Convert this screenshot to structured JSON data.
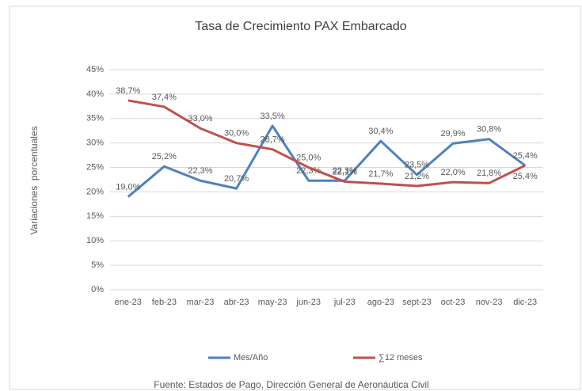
{
  "chart_data": {
    "type": "line",
    "title": "Tasa de Crecimiento PAX Embarcado",
    "y_label": "Variaciones  porcentuales",
    "source": "Fuente: Estados de Pago, Dirección General de Aeronáutica Civil",
    "categories": [
      "ene-23",
      "feb-23",
      "mar-23",
      "abr-23",
      "may-23",
      "jun-23",
      "jul-23",
      "ago-23",
      "sept-23",
      "oct-23",
      "nov-23",
      "dic-23"
    ],
    "series": [
      {
        "name": "Mes/Año",
        "color": "#4f81bd",
        "values": [
          19.0,
          25.2,
          22.3,
          20.7,
          33.5,
          22.3,
          22.3,
          30.4,
          23.5,
          29.9,
          30.8,
          25.4
        ],
        "value_labels": [
          "19,0%",
          "25,2%",
          "22,3%",
          "20,7%",
          "33,5%",
          "22,3%",
          "22,3%",
          "30,4%",
          "23,5%",
          "29,9%",
          "30,8%",
          "25,4%"
        ]
      },
      {
        "name": "∑12 meses",
        "color": "#c0504d",
        "values": [
          38.7,
          37.4,
          33.0,
          30.0,
          28.7,
          25.0,
          22.1,
          21.7,
          21.2,
          22.0,
          21.8,
          25.4
        ],
        "value_labels": [
          "38,7%",
          "37,4%",
          "33,0%",
          "30,0%",
          "28,7%",
          "25,0%",
          "22,1%",
          "21,7%",
          "21,2%",
          "22,0%",
          "21,8%",
          "25,4%"
        ]
      }
    ],
    "ylim": [
      0,
      45
    ],
    "yticks": [
      {
        "value": 0,
        "label": "0%"
      },
      {
        "value": 5,
        "label": "5%"
      },
      {
        "value": 10,
        "label": "10%"
      },
      {
        "value": 15,
        "label": "15%"
      },
      {
        "value": 20,
        "label": "20%"
      },
      {
        "value": 25,
        "label": "25%"
      },
      {
        "value": 30,
        "label": "30%"
      },
      {
        "value": 35,
        "label": "35%"
      },
      {
        "value": 40,
        "label": "40%"
      },
      {
        "value": 45,
        "label": "45%"
      }
    ],
    "grid": true,
    "legend": "bottom"
  }
}
